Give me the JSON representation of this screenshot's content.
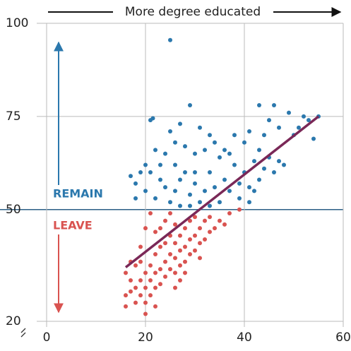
{
  "chart_data": {
    "type": "scatter",
    "title": "More degree educated",
    "annotations": {
      "remain": "REMAIN",
      "leave": "LEAVE"
    },
    "xlim": [
      0,
      60
    ],
    "xticks": [
      0,
      20,
      40,
      60
    ],
    "ylim": [
      20,
      100
    ],
    "yticks": [
      20,
      50,
      75,
      100
    ],
    "grid": true,
    "threshold": 50,
    "series": [
      {
        "name": "REMAIN",
        "color": "#2b78ad",
        "x": [
          25,
          29,
          21,
          21.5,
          25,
          27,
          31,
          33,
          34,
          36,
          38,
          40,
          41,
          43,
          46,
          47,
          49,
          52,
          55,
          51,
          54,
          48,
          45,
          43,
          42,
          40,
          38,
          35,
          32,
          30,
          28,
          26,
          24,
          22,
          21,
          19,
          18,
          17,
          20,
          23,
          24,
          26,
          27,
          28,
          29,
          30,
          31,
          32,
          33,
          34,
          36,
          37,
          39,
          41,
          43,
          44,
          46,
          47,
          50,
          53,
          18,
          20,
          22,
          25,
          27,
          29,
          33,
          35,
          39,
          41,
          42,
          30,
          26,
          23,
          37,
          44,
          45
        ],
        "values": [
          95.5,
          78,
          74,
          74.5,
          71,
          73,
          72,
          70,
          68,
          66,
          70,
          68,
          71,
          78,
          78,
          72,
          76,
          75,
          75,
          72,
          69,
          62,
          64,
          66,
          63,
          60,
          62,
          64,
          66,
          65,
          67,
          68,
          65,
          66,
          60,
          60,
          57,
          59,
          62,
          58,
          56,
          55,
          58,
          60,
          54,
          57,
          52,
          55,
          60,
          56,
          58,
          55,
          53,
          56,
          58,
          61,
          60,
          63,
          70,
          74,
          53,
          55,
          53,
          52,
          51,
          51,
          51,
          52,
          57,
          52,
          55,
          60,
          62,
          62,
          65,
          70,
          74
        ]
      },
      {
        "name": "LEAVE",
        "color": "#d95350",
        "x": [
          16,
          16,
          17,
          17,
          16,
          18,
          18,
          19,
          19,
          20,
          20,
          20,
          21,
          21,
          21,
          22,
          22,
          22,
          23,
          23,
          23,
          24,
          24,
          24,
          25,
          25,
          25,
          26,
          26,
          26,
          26,
          27,
          27,
          27,
          28,
          28,
          28,
          29,
          29,
          29,
          30,
          30,
          30,
          31,
          31,
          32,
          32,
          33,
          33,
          34,
          35,
          36,
          37,
          39,
          19,
          20,
          21,
          22,
          24,
          25,
          23,
          18,
          17,
          19,
          22,
          20,
          27,
          28,
          31,
          26
        ],
        "values": [
          24,
          27,
          28,
          31,
          33,
          25,
          29,
          27,
          31,
          25,
          29,
          33,
          27,
          31,
          35,
          29,
          33,
          38,
          30,
          34,
          40,
          32,
          36,
          41,
          34,
          38,
          43,
          33,
          37,
          41,
          46,
          35,
          39,
          43,
          36,
          40,
          45,
          38,
          42,
          47,
          39,
          43,
          48,
          41,
          45,
          42,
          47,
          44,
          48,
          45,
          47,
          46,
          49,
          50,
          40,
          45,
          49,
          44,
          47,
          49,
          45,
          35,
          36,
          36,
          24,
          22,
          31,
          33,
          37,
          29
        ]
      }
    ],
    "trend": {
      "color": "#7a2857",
      "x": [
        16,
        55
      ],
      "values": [
        34.5,
        75
      ]
    }
  }
}
